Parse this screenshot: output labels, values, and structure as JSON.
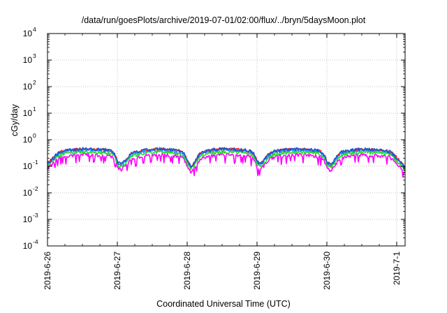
{
  "chart_data": {
    "type": "line",
    "title": "/data/run/goesPlots/archive/2019-07-01/02:00/flux/../bryn/5daysMoon.plot",
    "xlabel": "Coordinated Universal Time (UTC)",
    "ylabel": "cGy/day",
    "yscale": "log",
    "ylim": [
      0.0001,
      10000
    ],
    "yticks": [
      {
        "base": "10",
        "exp": "-4"
      },
      {
        "base": "10",
        "exp": "-3"
      },
      {
        "base": "10",
        "exp": "-2"
      },
      {
        "base": "10",
        "exp": "-1"
      },
      {
        "base": "10",
        "exp": "0"
      },
      {
        "base": "10",
        "exp": "1"
      },
      {
        "base": "10",
        "exp": "2"
      },
      {
        "base": "10",
        "exp": "3"
      },
      {
        "base": "10",
        "exp": "4"
      }
    ],
    "xlim_days": [
      0,
      5.12
    ],
    "xticks": [
      {
        "label": "2019-6-26",
        "day": 0
      },
      {
        "label": "2019-6-27",
        "day": 1
      },
      {
        "label": "2019-6-28",
        "day": 2
      },
      {
        "label": "2019-6-29",
        "day": 3
      },
      {
        "label": "2019-6-30",
        "day": 4
      },
      {
        "label": "2019-7-1",
        "day": 5
      }
    ],
    "grid": true,
    "legend": "none",
    "series": [
      {
        "color": "#ff00ff",
        "scale": 0.62,
        "spike": true
      },
      {
        "color": "#ff1010",
        "scale": 1.0
      },
      {
        "color": "#1fa0ff",
        "scale": 0.93
      },
      {
        "color": "#22dd22",
        "scale": 0.78
      },
      {
        "color": "#2255cc",
        "scale": 1.02
      }
    ],
    "envelope": {
      "x": [
        0.0,
        0.05,
        0.1,
        0.15,
        0.2,
        0.3,
        0.4,
        0.5,
        0.6,
        0.7,
        0.8,
        0.9,
        0.95,
        1.0,
        1.05,
        1.1,
        1.15,
        1.2,
        1.3,
        1.4,
        1.5,
        1.6,
        1.7,
        1.8,
        1.9,
        1.95,
        2.0,
        2.05,
        2.1,
        2.15,
        2.2,
        2.3,
        2.4,
        2.5,
        2.6,
        2.7,
        2.8,
        2.9,
        2.95,
        3.0,
        3.05,
        3.1,
        3.15,
        3.2,
        3.3,
        3.4,
        3.5,
        3.6,
        3.7,
        3.8,
        3.9,
        3.95,
        4.0,
        4.05,
        4.1,
        4.15,
        4.2,
        4.3,
        4.4,
        4.5,
        4.6,
        4.7,
        4.8,
        4.9,
        4.95,
        5.0,
        5.05,
        5.1,
        5.12
      ],
      "y": [
        0.13,
        0.17,
        0.22,
        0.3,
        0.36,
        0.4,
        0.42,
        0.44,
        0.43,
        0.42,
        0.41,
        0.4,
        0.32,
        0.14,
        0.12,
        0.15,
        0.2,
        0.3,
        0.36,
        0.4,
        0.42,
        0.45,
        0.43,
        0.4,
        0.37,
        0.3,
        0.16,
        0.1,
        0.13,
        0.22,
        0.32,
        0.38,
        0.42,
        0.44,
        0.43,
        0.42,
        0.4,
        0.38,
        0.3,
        0.15,
        0.12,
        0.17,
        0.25,
        0.33,
        0.38,
        0.41,
        0.43,
        0.44,
        0.42,
        0.4,
        0.37,
        0.3,
        0.14,
        0.11,
        0.15,
        0.24,
        0.33,
        0.38,
        0.41,
        0.43,
        0.42,
        0.41,
        0.39,
        0.35,
        0.28,
        0.2,
        0.15,
        0.1,
        0.09
      ]
    }
  }
}
